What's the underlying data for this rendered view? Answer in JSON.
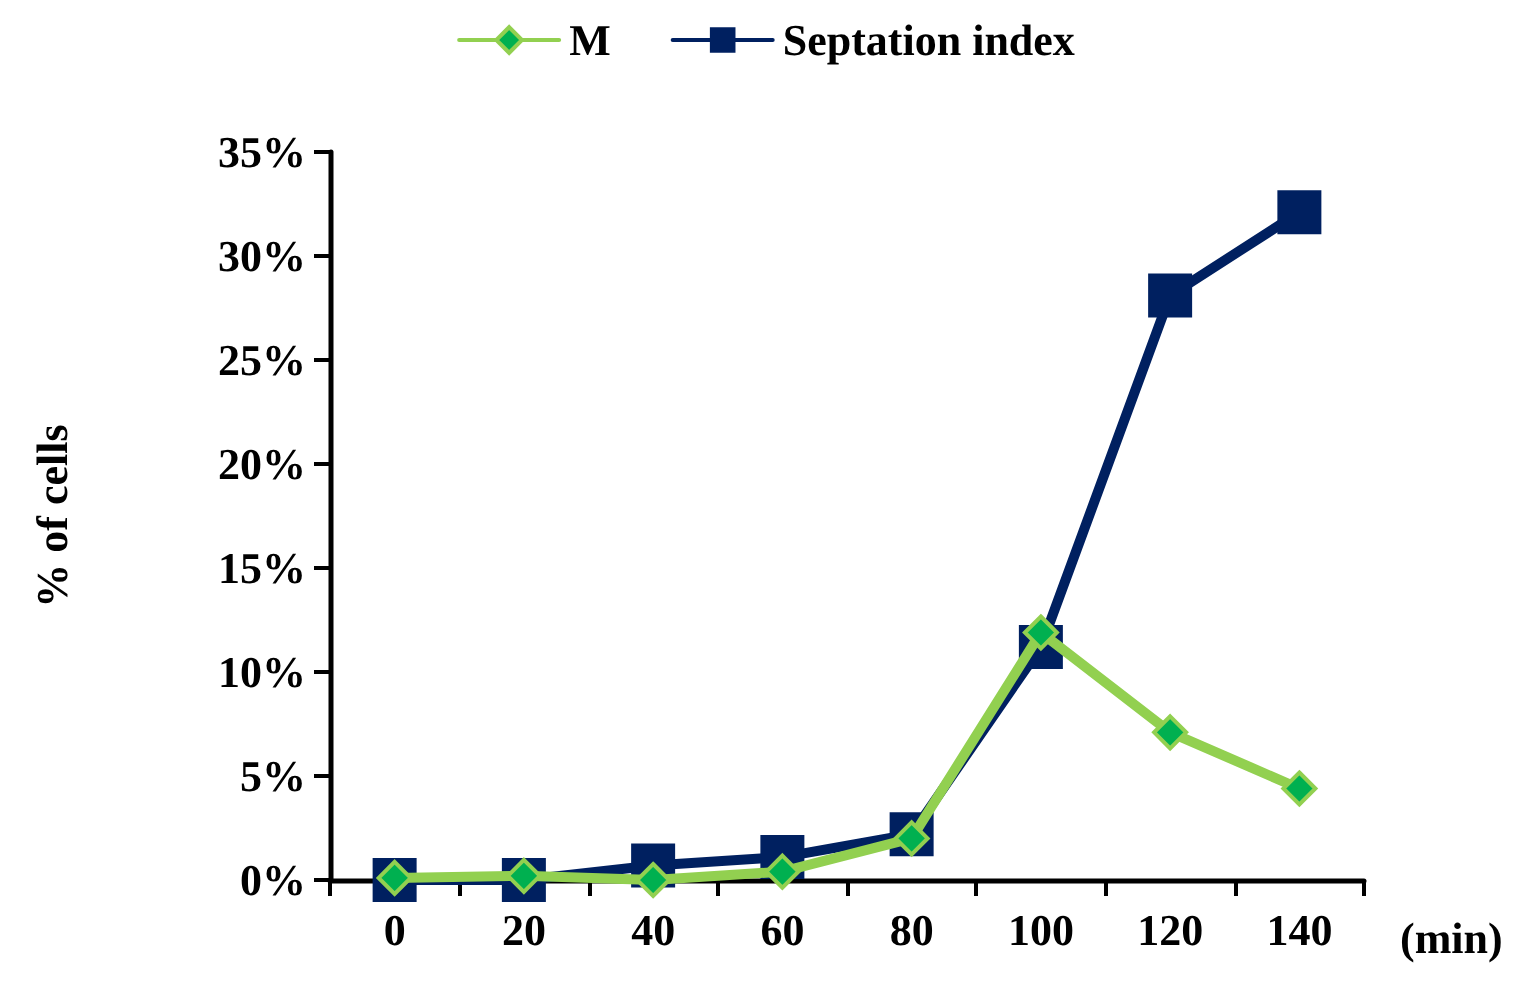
{
  "chart_data": {
    "type": "line",
    "xlabel": "(min)",
    "ylabel": "% of cells",
    "categories": [
      "0",
      "20",
      "40",
      "60",
      "80",
      "100",
      "120",
      "140"
    ],
    "series": [
      {
        "name": "M",
        "color": "#92d050",
        "marker": "diamond",
        "values": [
          0.1,
          0.2,
          0,
          0.4,
          2.0,
          11.9,
          7.1,
          4.4
        ]
      },
      {
        "name": "Septation index",
        "color": "#002060",
        "marker": "square",
        "values": [
          0,
          0,
          0.7,
          1.1,
          2.2,
          11.2,
          28.1,
          32.1
        ]
      }
    ],
    "ylim": [
      0,
      35
    ],
    "yticks": [
      {
        "value": 0,
        "label": "0%"
      },
      {
        "value": 5,
        "label": "5%"
      },
      {
        "value": 10,
        "label": "10%"
      },
      {
        "value": 15,
        "label": "15%"
      },
      {
        "value": 20,
        "label": "20%"
      },
      {
        "value": 25,
        "label": "25%"
      },
      {
        "value": 30,
        "label": "30%"
      },
      {
        "value": 35,
        "label": "35%"
      }
    ],
    "grid": false,
    "legend": "top",
    "line_style": "solid"
  }
}
